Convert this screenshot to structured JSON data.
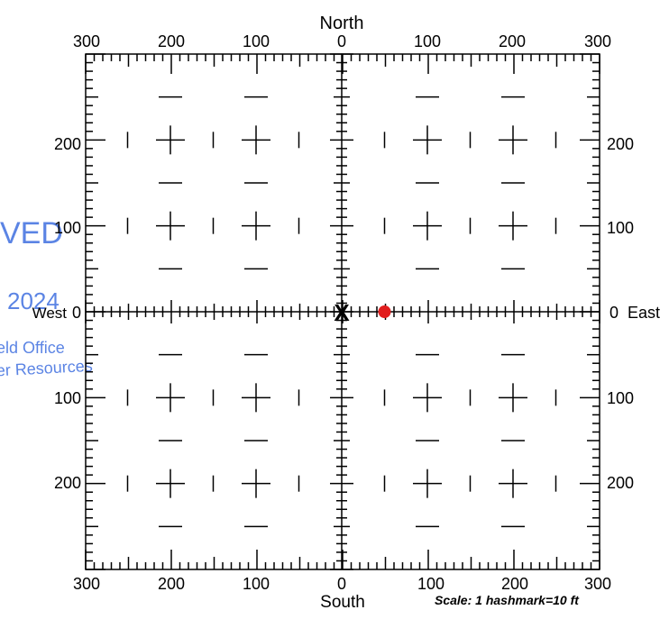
{
  "compass": {
    "north": "North",
    "south": "South",
    "east": "East",
    "west": "West"
  },
  "top_ticks": [
    "300",
    "200",
    "100",
    "0",
    "100",
    "200",
    "300"
  ],
  "bottom_ticks": [
    "300",
    "200",
    "100",
    "0",
    "100",
    "200",
    "300"
  ],
  "left_ticks": [
    "200",
    "100",
    "0",
    "100",
    "200"
  ],
  "right_ticks": [
    "200",
    "100",
    "0",
    "100",
    "200"
  ],
  "scale_note": "Scale:  1 hashmark=10 ft",
  "stamp": {
    "line1": "VED",
    "line2": "2024",
    "line3": "eld Office",
    "line4": "er Resources"
  },
  "markers": {
    "origin": {
      "symbol": "X",
      "x": 0,
      "y": 0
    },
    "point": {
      "x": 50,
      "y": 0,
      "color": "#e11d1d"
    }
  },
  "colors": {
    "ink": "#000000",
    "stamp_blue": "#3f6fe0",
    "point_red": "#e11d1d"
  }
}
